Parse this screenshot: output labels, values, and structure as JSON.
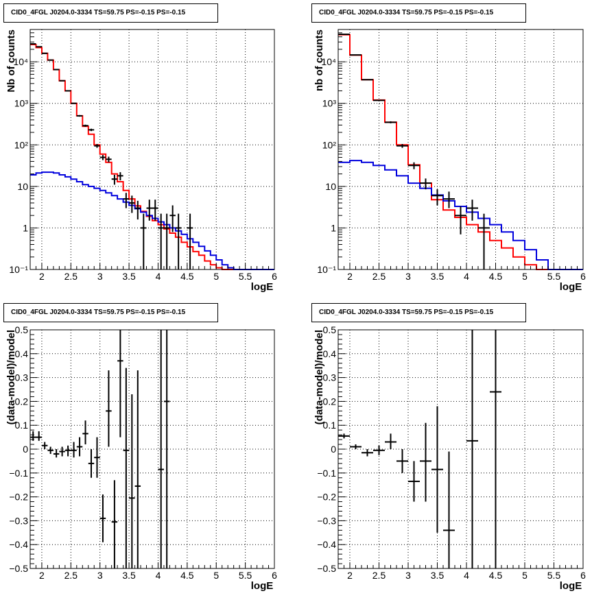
{
  "panels": [
    {
      "title": "CID0_4FGL J0204.0-3334 TS=59.75 PS=-0.15 PS=-0.15",
      "chart_data": {
        "type": "line",
        "xlabel": "logE",
        "ylabel": "Nb of counts",
        "xlim": [
          1.8,
          6
        ],
        "ylim": [
          0.1,
          60000
        ],
        "yscale": "log",
        "grid": true,
        "xticks": [
          "2",
          "2.5",
          "3",
          "3.5",
          "4",
          "4.5",
          "5",
          "5.5",
          "6"
        ],
        "yticks": [
          "10⁻¹",
          "1",
          "10",
          "10²",
          "10³",
          "10⁴"
        ],
        "bin_edges": [
          1.8,
          1.9,
          2.0,
          2.1,
          2.2,
          2.3,
          2.4,
          2.5,
          2.6,
          2.7,
          2.8,
          2.9,
          3.0,
          3.1,
          3.2,
          3.3,
          3.4,
          3.5,
          3.6,
          3.7,
          3.8,
          3.9,
          4.0,
          4.1,
          4.2,
          4.3,
          4.4,
          4.5,
          4.6,
          4.7,
          4.8,
          4.9,
          5.0,
          5.1,
          5.2,
          5.3,
          5.4,
          5.5,
          5.6,
          5.7,
          5.8,
          5.9,
          6.0
        ],
        "series": [
          {
            "color": "#ff0000",
            "style": "step",
            "values": [
              26000,
              22000,
              16000,
              11000,
              6500,
              3500,
              2000,
              1000,
              500,
              280,
              180,
              100,
              60,
              38,
              20,
              13,
              8,
              5,
              3.4,
              2.5,
              1.9,
              1.5,
              1.2,
              0.95,
              0.75,
              0.6,
              0.45,
              0.35,
              0.27,
              0.22,
              0.16,
              0.13,
              0.11,
              0.1,
              0.1,
              0.1,
              0.1,
              0.1,
              0.1,
              0.1,
              0.1,
              0.1
            ]
          },
          {
            "color": "#0000dd",
            "style": "step",
            "values": [
              19,
              21,
              22,
              22,
              21,
              19,
              17,
              15,
              13,
              11,
              10,
              9,
              8,
              7,
              6,
              5,
              4.2,
              3.5,
              2.9,
              2.4,
              2,
              1.7,
              1.4,
              1.2,
              1,
              0.85,
              0.7,
              0.55,
              0.45,
              0.36,
              0.28,
              0.22,
              0.17,
              0.13,
              0.11,
              0.1,
              0.1,
              0.1,
              0.1,
              0.1,
              0.1,
              0.1
            ]
          },
          {
            "color": "#000000",
            "style": "errorbars",
            "points": [
              {
                "x": 1.85,
                "y": 27000,
                "lo": 26800,
                "hi": 27200
              },
              {
                "x": 1.95,
                "y": 23000,
                "lo": 22800,
                "hi": 23200
              },
              {
                "x": 2.05,
                "y": 16000,
                "lo": 15800,
                "hi": 16200
              },
              {
                "x": 2.15,
                "y": 11000,
                "lo": 10900,
                "hi": 11100
              },
              {
                "x": 2.25,
                "y": 6500,
                "lo": 6420,
                "hi": 6580
              },
              {
                "x": 2.35,
                "y": 3500,
                "lo": 3440,
                "hi": 3560
              },
              {
                "x": 2.45,
                "y": 2000,
                "lo": 1955,
                "hi": 2045
              },
              {
                "x": 2.55,
                "y": 1000,
                "lo": 970,
                "hi": 1030
              },
              {
                "x": 2.65,
                "y": 500,
                "lo": 478,
                "hi": 522
              },
              {
                "x": 2.75,
                "y": 290,
                "lo": 273,
                "hi": 307
              },
              {
                "x": 2.85,
                "y": 230,
                "lo": 215,
                "hi": 245
              },
              {
                "x": 2.95,
                "y": 95,
                "lo": 85,
                "hi": 105
              },
              {
                "x": 3.05,
                "y": 50,
                "lo": 43,
                "hi": 57
              },
              {
                "x": 3.15,
                "y": 45,
                "lo": 38,
                "hi": 52
              },
              {
                "x": 3.25,
                "y": 15,
                "lo": 11,
                "hi": 19
              },
              {
                "x": 3.35,
                "y": 18,
                "lo": 14,
                "hi": 22
              },
              {
                "x": 3.45,
                "y": 5,
                "lo": 3,
                "hi": 7
              },
              {
                "x": 3.55,
                "y": 4,
                "lo": 2.3,
                "hi": 6
              },
              {
                "x": 3.65,
                "y": 3,
                "lo": 1.6,
                "hi": 4.5
              },
              {
                "x": 3.75,
                "y": 1,
                "lo": 0.1,
                "hi": 2.2
              },
              {
                "x": 3.85,
                "y": 3,
                "lo": 1.5,
                "hi": 4.8
              },
              {
                "x": 3.95,
                "y": 3,
                "lo": 1.5,
                "hi": 4.8
              },
              {
                "x": 4.05,
                "y": 1,
                "lo": 0.1,
                "hi": 2.2
              },
              {
                "x": 4.15,
                "y": 1,
                "lo": 0.1,
                "hi": 2.2
              },
              {
                "x": 4.25,
                "y": 2,
                "lo": 0.8,
                "hi": 3.5
              },
              {
                "x": 4.35,
                "y": 1,
                "lo": 0.1,
                "hi": 2.2
              },
              {
                "x": 4.55,
                "y": 1,
                "lo": 0.1,
                "hi": 2.2
              }
            ]
          }
        ]
      }
    },
    {
      "title": "CID0_4FGL J0204.0-3334 TS=59.75 PS=-0.15 PS=-0.15",
      "chart_data": {
        "type": "line",
        "xlabel": "logE",
        "ylabel": "nb of counts",
        "xlim": [
          1.8,
          6
        ],
        "ylim": [
          0.1,
          60000
        ],
        "yscale": "log",
        "grid": true,
        "xticks": [
          "2",
          "2.5",
          "3",
          "3.5",
          "4",
          "4.5",
          "5",
          "5.5",
          "6"
        ],
        "yticks": [
          "10⁻¹",
          "1",
          "10",
          "10²",
          "10³",
          "10⁴"
        ],
        "bin_edges": [
          1.8,
          2.0,
          2.2,
          2.4,
          2.6,
          2.8,
          3.0,
          3.2,
          3.4,
          3.6,
          3.8,
          4.0,
          4.2,
          4.4,
          4.6,
          4.8,
          5.0,
          5.2,
          5.4,
          5.6,
          5.8,
          6.0
        ],
        "series": [
          {
            "color": "#ff0000",
            "style": "step",
            "values": [
              45000,
              14500,
              3700,
              1200,
              350,
              100,
              33,
              12,
              4.8,
              2.7,
              1.8,
              1.2,
              0.8,
              0.5,
              0.33,
              0.2,
              0.13,
              0.1,
              0.1,
              0.1,
              0.1
            ]
          },
          {
            "color": "#0000dd",
            "style": "step",
            "values": [
              38,
              42,
              38,
              32,
              25,
              18,
              12,
              9,
              6.2,
              4.5,
              3.3,
              2.4,
              1.7,
              1.2,
              0.8,
              0.5,
              0.3,
              0.17,
              0.1,
              0.1,
              0.1
            ]
          },
          {
            "color": "#000000",
            "style": "errorbars",
            "points": [
              {
                "x": 1.9,
                "y": 46000,
                "lo": 45700,
                "hi": 46300
              },
              {
                "x": 2.1,
                "y": 14600,
                "lo": 14500,
                "hi": 14700
              },
              {
                "x": 2.3,
                "y": 3700,
                "lo": 3640,
                "hi": 3760
              },
              {
                "x": 2.5,
                "y": 1180,
                "lo": 1150,
                "hi": 1210
              },
              {
                "x": 2.7,
                "y": 350,
                "lo": 331,
                "hi": 369
              },
              {
                "x": 2.9,
                "y": 95,
                "lo": 85,
                "hi": 105
              },
              {
                "x": 3.1,
                "y": 32,
                "lo": 26,
                "hi": 38
              },
              {
                "x": 3.3,
                "y": 12,
                "lo": 8.5,
                "hi": 15.5
              },
              {
                "x": 3.5,
                "y": 6,
                "lo": 3.5,
                "hi": 8.5
              },
              {
                "x": 3.7,
                "y": 5,
                "lo": 3,
                "hi": 7.5
              },
              {
                "x": 3.9,
                "y": 2,
                "lo": 0.7,
                "hi": 3.3
              },
              {
                "x": 4.1,
                "y": 3,
                "lo": 1.5,
                "hi": 4.8
              },
              {
                "x": 4.3,
                "y": 1,
                "lo": 0.1,
                "hi": 2.2
              }
            ]
          }
        ]
      }
    },
    {
      "title": "CID0_4FGL J0204.0-3334 TS=59.75 PS=-0.15 PS=-0.15",
      "chart_data": {
        "type": "scatter",
        "xlabel": "logE",
        "ylabel": "(data-model)/model",
        "xlim": [
          1.8,
          6
        ],
        "ylim": [
          -0.5,
          0.5
        ],
        "grid": true,
        "xticks": [
          "2",
          "2.5",
          "3",
          "3.5",
          "4",
          "4.5",
          "5",
          "5.5",
          "6"
        ],
        "yticks": [
          "−0.5",
          "−0.4",
          "−0.3",
          "−0.2",
          "−0.1",
          "0",
          "0.1",
          "0.2",
          "0.3",
          "0.4",
          "0.5"
        ],
        "xerr": 0.05,
        "series": [
          {
            "color": "#000000",
            "style": "errorbars",
            "points": [
              {
                "x": 1.85,
                "y": 0.05,
                "lo": 0.035,
                "hi": 0.075
              },
              {
                "x": 1.95,
                "y": 0.05,
                "lo": 0.035,
                "hi": 0.075
              },
              {
                "x": 2.05,
                "y": 0.015,
                "lo": 0.0,
                "hi": 0.03
              },
              {
                "x": 2.15,
                "y": -0.005,
                "lo": -0.02,
                "hi": 0.01
              },
              {
                "x": 2.25,
                "y": -0.02,
                "lo": -0.035,
                "hi": 0.0
              },
              {
                "x": 2.35,
                "y": -0.01,
                "lo": -0.03,
                "hi": 0.01
              },
              {
                "x": 2.45,
                "y": -0.005,
                "lo": -0.03,
                "hi": 0.015
              },
              {
                "x": 2.55,
                "y": -0.005,
                "lo": -0.035,
                "hi": 0.03
              },
              {
                "x": 2.65,
                "y": 0.01,
                "lo": -0.03,
                "hi": 0.05
              },
              {
                "x": 2.75,
                "y": 0.065,
                "lo": 0.02,
                "hi": 0.12
              },
              {
                "x": 2.85,
                "y": -0.06,
                "lo": -0.12,
                "hi": 0.0
              },
              {
                "x": 2.95,
                "y": -0.035,
                "lo": -0.12,
                "hi": 0.05
              },
              {
                "x": 3.05,
                "y": -0.29,
                "lo": -0.39,
                "hi": -0.19
              },
              {
                "x": 3.15,
                "y": 0.16,
                "lo": 0.01,
                "hi": 0.33
              },
              {
                "x": 3.25,
                "y": -0.305,
                "lo": -0.5,
                "hi": -0.13
              },
              {
                "x": 3.35,
                "y": 0.37,
                "lo": 0.05,
                "hi": 0.5
              },
              {
                "x": 3.45,
                "y": -0.005,
                "lo": -0.5,
                "hi": 0.34
              },
              {
                "x": 3.55,
                "y": -0.205,
                "lo": -0.5,
                "hi": 0.23
              },
              {
                "x": 3.65,
                "y": -0.155,
                "lo": -0.5,
                "hi": 0.33
              },
              {
                "x": 4.05,
                "y": -0.085,
                "lo": -0.5,
                "hi": 0.5
              },
              {
                "x": 4.15,
                "y": 0.2,
                "lo": -0.5,
                "hi": 0.5
              }
            ]
          }
        ]
      }
    },
    {
      "title": "CID0_4FGL J0204.0-3334 TS=59.75 PS=-0.15 PS=-0.15",
      "chart_data": {
        "type": "scatter",
        "xlabel": "logE",
        "ylabel": "(data-model)/model",
        "xlim": [
          1.8,
          6
        ],
        "ylim": [
          -0.5,
          0.5
        ],
        "grid": true,
        "xticks": [
          "2",
          "2.5",
          "3",
          "3.5",
          "4",
          "4.5",
          "5",
          "5.5",
          "6"
        ],
        "yticks": [
          "−0.5",
          "−0.4",
          "−0.3",
          "−0.2",
          "−0.1",
          "0",
          "0.1",
          "0.2",
          "0.3",
          "0.4",
          "0.5"
        ],
        "xerr": 0.1,
        "series": [
          {
            "color": "#000000",
            "style": "errorbars",
            "points": [
              {
                "x": 1.9,
                "y": 0.055,
                "lo": 0.045,
                "hi": 0.065
              },
              {
                "x": 2.1,
                "y": 0.01,
                "lo": 0.0,
                "hi": 0.02
              },
              {
                "x": 2.3,
                "y": -0.015,
                "lo": -0.03,
                "hi": 0.0
              },
              {
                "x": 2.5,
                "y": -0.005,
                "lo": -0.025,
                "hi": 0.015
              },
              {
                "x": 2.7,
                "y": 0.03,
                "lo": 0.0,
                "hi": 0.065
              },
              {
                "x": 2.9,
                "y": -0.05,
                "lo": -0.1,
                "hi": 0.0
              },
              {
                "x": 3.1,
                "y": -0.135,
                "lo": -0.22,
                "hi": -0.05
              },
              {
                "x": 3.3,
                "y": -0.05,
                "lo": -0.22,
                "hi": 0.11
              },
              {
                "x": 3.5,
                "y": -0.085,
                "lo": -0.35,
                "hi": 0.18
              },
              {
                "x": 3.7,
                "y": -0.34,
                "lo": -0.5,
                "hi": -0.01
              },
              {
                "x": 4.1,
                "y": 0.035,
                "lo": -0.5,
                "hi": 0.5
              },
              {
                "x": 4.5,
                "y": 0.24,
                "lo": -0.5,
                "hi": 0.5
              }
            ]
          }
        ]
      }
    }
  ]
}
